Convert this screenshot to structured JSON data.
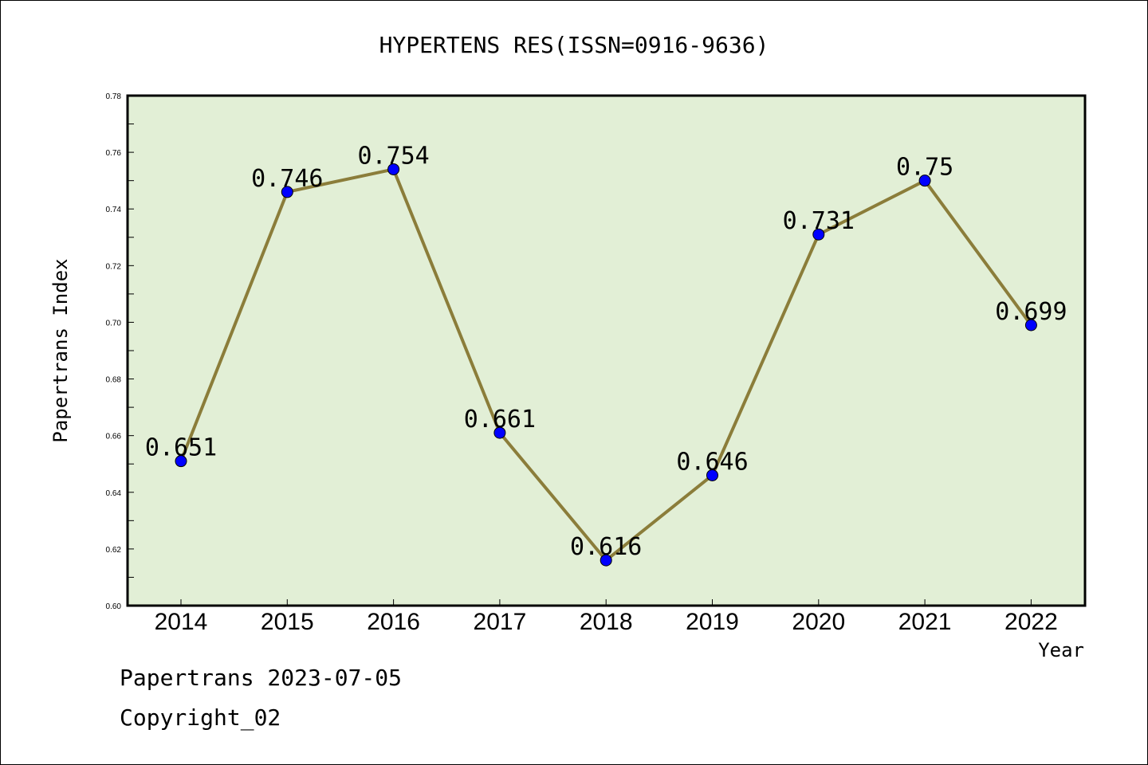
{
  "chart_data": {
    "type": "line",
    "title": "HYPERTENS RES(ISSN=0916-9636)",
    "xlabel": "Year",
    "ylabel": "Papertrans Index",
    "categories": [
      "2014",
      "2015",
      "2016",
      "2017",
      "2018",
      "2019",
      "2020",
      "2021",
      "2022"
    ],
    "series": [
      {
        "values": [
          0.651,
          0.746,
          0.754,
          0.661,
          0.616,
          0.646,
          0.731,
          0.75,
          0.699
        ],
        "data_labels": [
          "0.651",
          "0.746",
          "0.754",
          "0.661",
          "0.616",
          "0.646",
          "0.731",
          "0.75",
          "0.699"
        ]
      }
    ],
    "ylim": [
      0.6,
      0.78
    ],
    "yticks": [
      "0.60",
      "0.62",
      "0.64",
      "0.66",
      "0.68",
      "0.70",
      "0.72",
      "0.74",
      "0.76",
      "0.78"
    ],
    "grid": false,
    "colors": {
      "plot_background": "#e2efd6",
      "line": "#8b7d3a",
      "marker": "#0000ff"
    }
  },
  "footer": {
    "line1": "Papertrans 2023-07-05",
    "line2": "Copyright_02"
  }
}
